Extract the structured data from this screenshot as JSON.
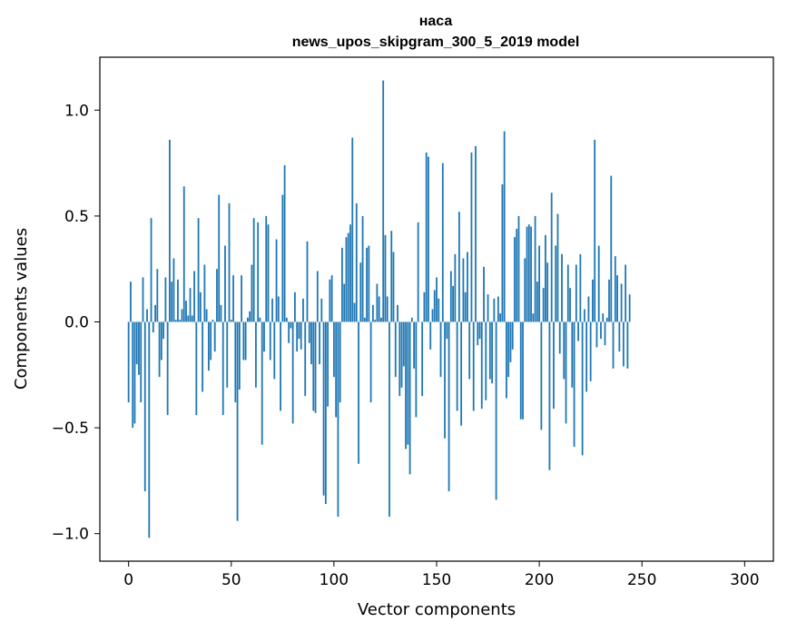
{
  "chart_data": {
    "type": "bar",
    "title": "наса",
    "subtitle": "news_upos_skipgram_300_5_2019 model",
    "xlabel": "Vector components",
    "ylabel": "Components values",
    "xlim": [
      -14,
      314
    ],
    "ylim": [
      -1.13,
      1.25
    ],
    "xticks": [
      0,
      50,
      100,
      150,
      200,
      250,
      300
    ],
    "xtick_labels": [
      "0",
      "50",
      "100",
      "150",
      "200",
      "250",
      "300"
    ],
    "yticks": [
      -1.0,
      -0.5,
      0.0,
      0.5,
      1.0
    ],
    "ytick_labels": [
      "−1.0",
      "−0.5",
      "0.0",
      "0.5",
      "1.0"
    ],
    "grid": false,
    "bar_color": "#1f77b4",
    "values": [
      -0.38,
      0.19,
      -0.5,
      -0.48,
      -0.2,
      -0.25,
      -0.38,
      0.21,
      -0.8,
      0.06,
      -1.02,
      0.49,
      -0.05,
      0.08,
      0.25,
      -0.26,
      -0.18,
      -0.08,
      0.21,
      -0.44,
      0.86,
      0.19,
      0.3,
      0.01,
      0.2,
      0.01,
      0.06,
      0.64,
      0.1,
      0.03,
      0.16,
      0.03,
      0.24,
      -0.44,
      0.49,
      0.14,
      -0.33,
      0.27,
      0.06,
      -0.23,
      -0.18,
      0.01,
      -0.14,
      0.25,
      0.6,
      0.08,
      -0.44,
      0.36,
      -0.31,
      0.56,
      0.01,
      0.22,
      -0.38,
      -0.94,
      -0.32,
      0.22,
      -0.18,
      -0.18,
      0.02,
      0.05,
      0.27,
      0.49,
      -0.31,
      0.47,
      0.02,
      -0.58,
      -0.14,
      0.5,
      0.46,
      -0.18,
      0.11,
      -0.27,
      0.39,
      0.12,
      -0.42,
      0.6,
      0.74,
      0.02,
      -0.1,
      -0.03,
      -0.48,
      0.14,
      -0.14,
      -0.08,
      -0.13,
      0.11,
      -0.35,
      0.38,
      -0.1,
      -0.2,
      -0.42,
      -0.43,
      0.24,
      -0.2,
      0.11,
      -0.82,
      -0.86,
      -0.4,
      0.2,
      0.22,
      -0.26,
      -0.45,
      -0.92,
      -0.38,
      0.35,
      0.18,
      0.4,
      0.42,
      0.46,
      0.87,
      0.09,
      0.56,
      -0.67,
      0.28,
      0.5,
      0.02,
      0.35,
      0.36,
      -0.38,
      0.08,
      0.01,
      0.18,
      0.12,
      0.02,
      1.14,
      0.41,
      0.12,
      -0.92,
      0.43,
      0.33,
      -0.26,
      0.08,
      -0.35,
      -0.31,
      -0.21,
      -0.6,
      -0.58,
      -0.72,
      0.02,
      -0.22,
      -0.45,
      0.47,
      0.0,
      -0.35,
      0.14,
      0.8,
      0.78,
      -0.13,
      0.06,
      0.15,
      0.21,
      0.11,
      -0.26,
      0.75,
      -0.55,
      -0.08,
      -0.8,
      0.24,
      0.17,
      0.32,
      -0.42,
      0.52,
      -0.49,
      0.3,
      0.14,
      0.33,
      -0.27,
      0.8,
      -0.42,
      0.83,
      -0.11,
      -0.08,
      -0.41,
      0.26,
      -0.37,
      0.13,
      -0.27,
      -0.29,
      0.11,
      -0.84,
      0.12,
      0.04,
      0.65,
      0.9,
      -0.36,
      -0.26,
      -0.19,
      -0.13,
      0.4,
      0.44,
      0.5,
      -0.46,
      -0.46,
      0.3,
      0.45,
      0.46,
      0.45,
      0.04,
      0.5,
      0.19,
      0.36,
      -0.51,
      0.16,
      0.41,
      0.28,
      -0.7,
      0.61,
      -0.41,
      0.36,
      0.51,
      -0.15,
      0.32,
      -0.27,
      -0.48,
      0.27,
      0.16,
      -0.31,
      -0.59,
      0.27,
      -0.09,
      0.32,
      -0.63,
      0.06,
      -0.33,
      0.12,
      -0.28,
      0.2,
      0.86,
      -0.12,
      0.36,
      -0.08,
      0.04,
      -0.11,
      0.02,
      0.2,
      0.69,
      -0.22,
      0.31,
      0.22,
      -0.14,
      0.18,
      -0.21,
      0.27,
      -0.22,
      0.13
    ]
  }
}
